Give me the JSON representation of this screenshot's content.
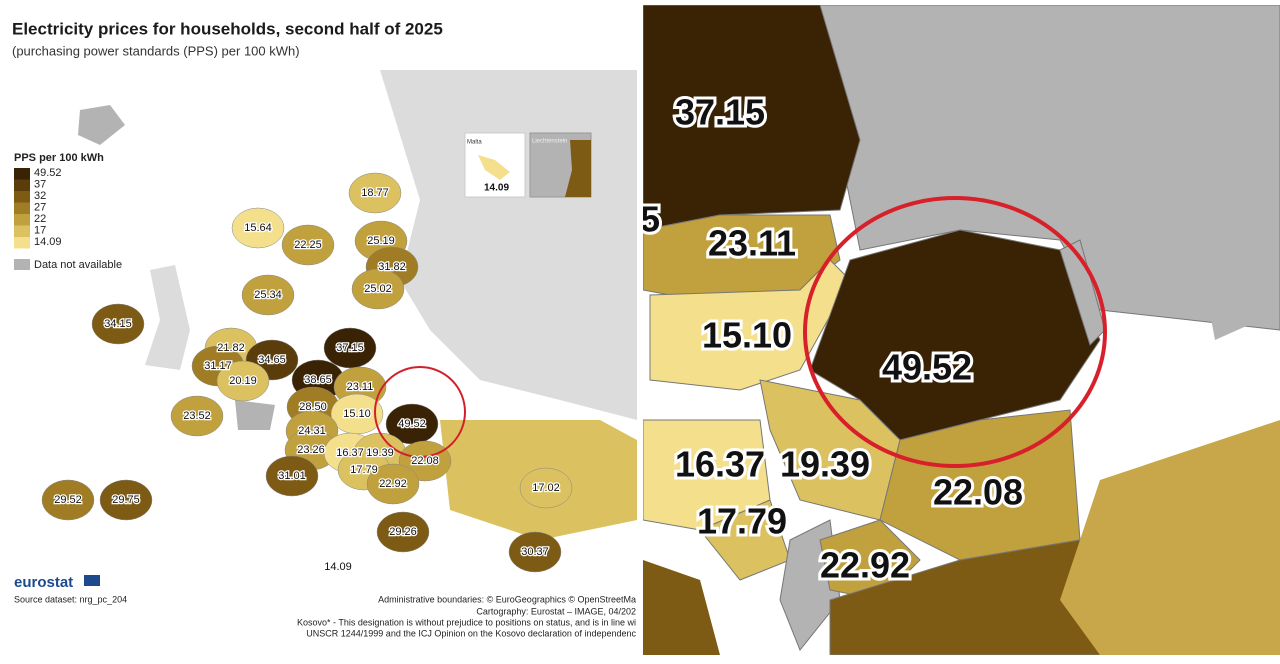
{
  "header": {
    "title": "Electricity prices for households, second half of 2025",
    "subtitle": "(purchasing power standards (PPS) per 100 kWh)"
  },
  "legend": {
    "title": "PPS per 100 kWh",
    "breaks": [
      {
        "label": "49.52",
        "color": "#3a2205"
      },
      {
        "label": "37",
        "color": "#5b3c0b"
      },
      {
        "label": "32",
        "color": "#7e5b14"
      },
      {
        "label": "27",
        "color": "#a07d24"
      },
      {
        "label": "22",
        "color": "#c1a03e"
      },
      {
        "label": "17",
        "color": "#dbc160"
      },
      {
        "label": "14.09",
        "color": "#f4e08c"
      }
    ],
    "no_data": {
      "label": "Data not available",
      "color": "#b3b3b3"
    }
  },
  "insets": [
    {
      "name": "Malta",
      "value": "14.09"
    },
    {
      "name": "Liechtenstein"
    }
  ],
  "map_labels": [
    {
      "label": "15.64",
      "color": "#f4e08c"
    },
    {
      "label": "22.25",
      "color": "#c1a03e"
    },
    {
      "label": "18.77",
      "color": "#dbc160"
    },
    {
      "label": "25.19",
      "color": "#c1a03e"
    },
    {
      "label": "31.82",
      "color": "#a07d24"
    },
    {
      "label": "25.02",
      "color": "#c1a03e"
    },
    {
      "label": "25.34",
      "color": "#c1a03e"
    },
    {
      "label": "34.15",
      "color": "#7e5b14"
    },
    {
      "label": "37.15",
      "color": "#3a2205"
    },
    {
      "label": "21.82",
      "color": "#dbc160"
    },
    {
      "label": "34.65",
      "color": "#5b3c0b"
    },
    {
      "label": "31.17",
      "color": "#a07d24"
    },
    {
      "label": "20.19",
      "color": "#dbc160"
    },
    {
      "label": "38.65",
      "color": "#3a2205"
    },
    {
      "label": "23.11",
      "color": "#c1a03e"
    },
    {
      "label": "28.50",
      "color": "#a07d24"
    },
    {
      "label": "15.10",
      "color": "#f4e08c"
    },
    {
      "label": "49.52",
      "color": "#3a2205"
    },
    {
      "label": "24.31",
      "color": "#c1a03e"
    },
    {
      "label": "23.26",
      "color": "#c1a03e"
    },
    {
      "label": "16.37",
      "color": "#f4e08c"
    },
    {
      "label": "19.39",
      "color": "#dbc160"
    },
    {
      "label": "17.79",
      "color": "#dbc160"
    },
    {
      "label": "22.08",
      "color": "#c1a03e"
    },
    {
      "label": "23.52",
      "color": "#c1a03e"
    },
    {
      "label": "31.01",
      "color": "#7e5b14"
    },
    {
      "label": "22.92",
      "color": "#c1a03e"
    },
    {
      "label": "29.52",
      "color": "#a07d24"
    },
    {
      "label": "29.75",
      "color": "#7e5b14"
    },
    {
      "label": "17.02",
      "color": "#dbc160"
    },
    {
      "label": "29.26",
      "color": "#7e5b14"
    },
    {
      "label": "30.37",
      "color": "#7e5b14"
    },
    {
      "label": "14.09",
      "color": "#f4e08c"
    }
  ],
  "zoom_labels": [
    "37.15",
    "5",
    "23.11",
    "15.10",
    "49.52",
    "16.37",
    "19.39",
    "22.08",
    "17.79",
    "22.92"
  ],
  "footer": {
    "brand": "eurostat",
    "source": "Source dataset: nrg_pc_204",
    "notes": [
      "Administrative boundaries: © EuroGeographics © OpenStreetMa",
      "Cartography: Eurostat – IMAGE, 04/202",
      "Kosovo* - This designation is without prejudice to positions on status, and is in line wi",
      "UNSCR 1244/1999 and the ICJ Opinion on the Kosovo declaration of independenc"
    ]
  }
}
